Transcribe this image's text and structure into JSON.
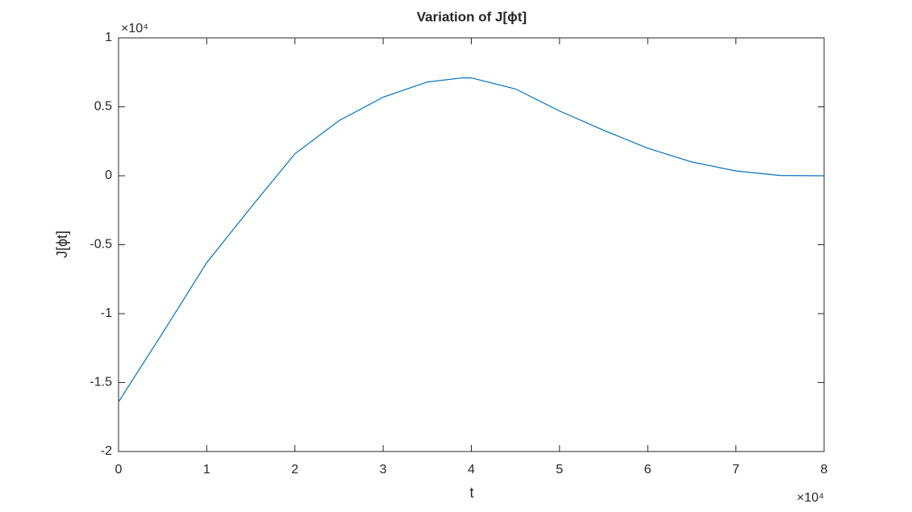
{
  "chart_data": {
    "type": "line",
    "title": "Variation of J[ϕt]",
    "xlabel": "t",
    "ylabel": "J[ϕt]",
    "x_exponent_label": "×10⁴",
    "y_exponent_label": "×10⁴",
    "x": [
      0,
      0.5,
      1,
      1.5,
      2,
      2.5,
      3,
      3.5,
      3.9,
      4,
      4.5,
      5,
      5.5,
      6,
      6.5,
      7,
      7.5,
      8
    ],
    "series": [
      {
        "name": "J",
        "color": "#0072bd",
        "values": [
          -1.64,
          -1.14,
          -0.63,
          -0.23,
          0.16,
          0.4,
          0.57,
          0.68,
          0.71,
          0.71,
          0.63,
          0.47,
          0.33,
          0.2,
          0.1,
          0.035,
          0.002,
          0
        ]
      }
    ],
    "xlim": [
      0,
      8
    ],
    "xticks": [
      0,
      1,
      2,
      3,
      4,
      5,
      6,
      7,
      8
    ],
    "ylim": [
      -2,
      1
    ],
    "yticks": [
      -2,
      -1.5,
      -1,
      -0.5,
      0,
      0.5,
      1
    ],
    "grid": false
  }
}
